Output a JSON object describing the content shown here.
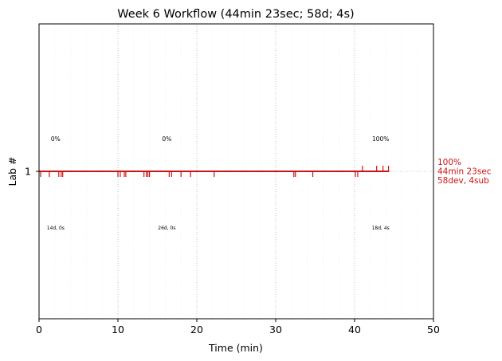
{
  "chart_data": {
    "type": "line",
    "title": "Week 6 Workflow (44min 23sec; 58d; 4s)",
    "xlabel": "Time (min)",
    "ylabel": "Lab #",
    "xlim": [
      0,
      50
    ],
    "x_ticks": [
      "0",
      "10",
      "20",
      "30",
      "40",
      "50"
    ],
    "y_ticks": [
      "1"
    ],
    "grid": "dotted vertical at 10-min intervals, faint minor lines every 2 min",
    "line_color": "#c81414",
    "lab": {
      "label": "1",
      "end_time": 44.38,
      "submission_times": [
        41.0,
        42.8,
        43.6,
        44.3
      ],
      "dev_times": [
        0.2,
        1.3,
        2.5,
        2.8,
        3.0,
        10.0,
        10.3,
        10.8,
        11.0,
        13.3,
        13.6,
        13.8,
        14.0,
        16.5,
        16.8,
        18.0,
        19.2,
        22.2,
        32.3,
        32.5,
        34.7,
        40.1,
        40.4
      ]
    },
    "segments": [
      {
        "x": 2.1,
        "percent": "0%",
        "detail": "14d, 0s"
      },
      {
        "x": 16.2,
        "percent": "0%",
        "detail": "26d, 0s"
      },
      {
        "x": 43.3,
        "percent": "100%",
        "detail": "18d, 4s"
      }
    ],
    "summary": [
      "100%",
      "44min 23sec",
      "58dev, 4sub"
    ]
  }
}
